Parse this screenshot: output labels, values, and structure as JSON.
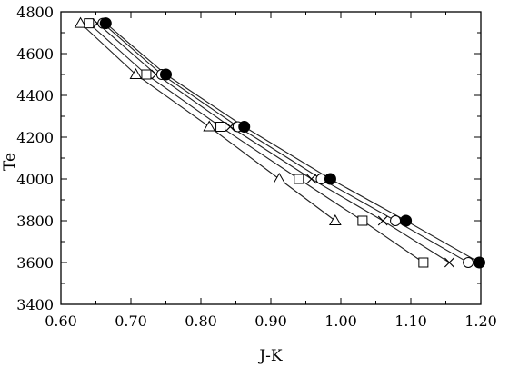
{
  "chart_data": {
    "type": "line",
    "title": "",
    "xlabel": "J-K",
    "ylabel": "Te",
    "xlim": [
      0.6,
      1.2
    ],
    "ylim": [
      3400,
      4800
    ],
    "x_ticks": [
      "0.60",
      "0.70",
      "0.80",
      "0.90",
      "1.00",
      "1.10",
      "1.20"
    ],
    "y_ticks": [
      "3400",
      "3600",
      "3800",
      "4000",
      "4200",
      "4400",
      "4600",
      "4800"
    ],
    "grid": false,
    "legend": "none",
    "series": [
      {
        "marker": "triangle",
        "points": [
          {
            "x": 0.628,
            "y": 4745
          },
          {
            "x": 0.707,
            "y": 4500
          },
          {
            "x": 0.812,
            "y": 4250
          },
          {
            "x": 0.912,
            "y": 4000
          },
          {
            "x": 0.992,
            "y": 3800
          }
        ]
      },
      {
        "marker": "square",
        "points": [
          {
            "x": 0.64,
            "y": 4745
          },
          {
            "x": 0.722,
            "y": 4500
          },
          {
            "x": 0.828,
            "y": 4250
          },
          {
            "x": 0.94,
            "y": 4000
          },
          {
            "x": 1.031,
            "y": 3800
          },
          {
            "x": 1.118,
            "y": 3600
          }
        ]
      },
      {
        "marker": "cross",
        "points": [
          {
            "x": 0.652,
            "y": 4745
          },
          {
            "x": 0.736,
            "y": 4500
          },
          {
            "x": 0.842,
            "y": 4250
          },
          {
            "x": 0.958,
            "y": 4000
          },
          {
            "x": 1.06,
            "y": 3800
          },
          {
            "x": 1.155,
            "y": 3600
          }
        ]
      },
      {
        "marker": "circle-open",
        "points": [
          {
            "x": 0.66,
            "y": 4745
          },
          {
            "x": 0.744,
            "y": 4500
          },
          {
            "x": 0.853,
            "y": 4250
          },
          {
            "x": 0.972,
            "y": 4000
          },
          {
            "x": 1.078,
            "y": 3800
          },
          {
            "x": 1.182,
            "y": 3600
          }
        ]
      },
      {
        "marker": "circle-filled",
        "points": [
          {
            "x": 0.664,
            "y": 4745
          },
          {
            "x": 0.75,
            "y": 4500
          },
          {
            "x": 0.862,
            "y": 4250
          },
          {
            "x": 0.985,
            "y": 4000
          },
          {
            "x": 1.093,
            "y": 3800
          },
          {
            "x": 1.198,
            "y": 3600
          }
        ]
      }
    ]
  }
}
